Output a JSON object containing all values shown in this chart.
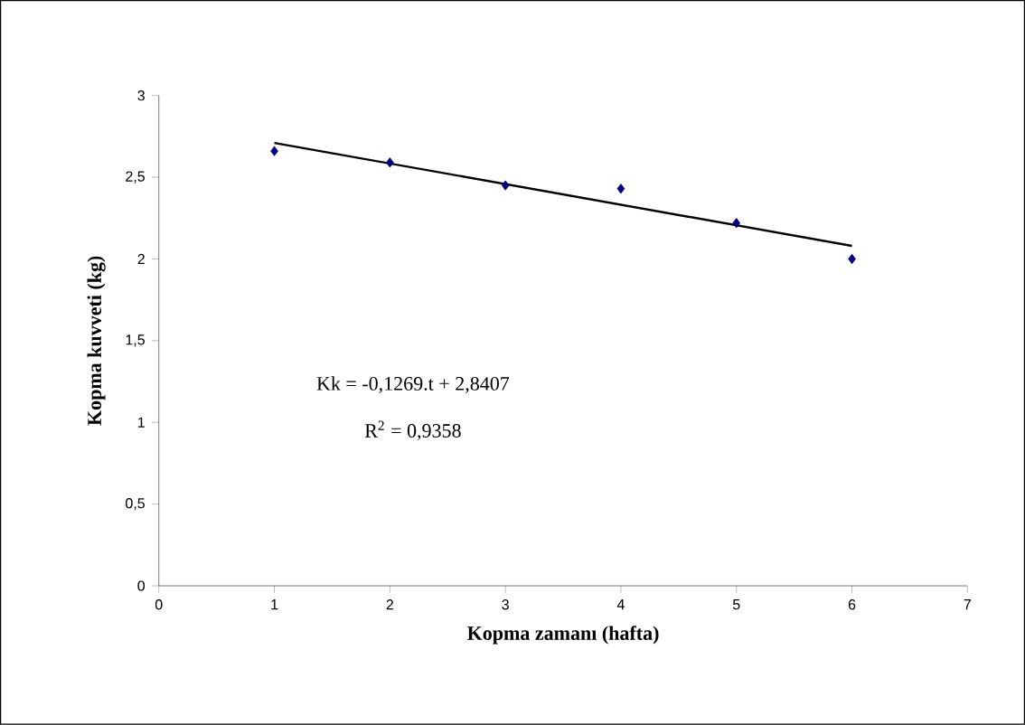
{
  "chart_data": {
    "type": "scatter",
    "xlabel": "Kopma zamanı (hafta)",
    "ylabel": "Kopma kuvveti (kg)",
    "xlim": [
      0,
      7
    ],
    "ylim": [
      0,
      3
    ],
    "xticks": [
      0,
      1,
      2,
      3,
      4,
      5,
      6,
      7
    ],
    "yticks": [
      {
        "value": 0,
        "label": "0"
      },
      {
        "value": 0.5,
        "label": "0,5"
      },
      {
        "value": 1,
        "label": "1"
      },
      {
        "value": 1.5,
        "label": "1,5"
      },
      {
        "value": 2,
        "label": "2"
      },
      {
        "value": 2.5,
        "label": "2,5"
      },
      {
        "value": 3,
        "label": "3"
      }
    ],
    "grid": false,
    "series": [
      {
        "color": "#000080",
        "marker": "diamond",
        "x": [
          1,
          2,
          3,
          4,
          5,
          6
        ],
        "values": [
          2.66,
          2.59,
          2.45,
          2.43,
          2.22,
          2.0
        ]
      },
      {
        "type": "line",
        "color": "#000000",
        "marker": "none",
        "line_style": "solid",
        "x": [
          1,
          6
        ],
        "values": [
          2.71,
          2.08
        ]
      }
    ],
    "annotations": [
      "Kk = -0,1269.t + 2,8407",
      "R$^{2}$ = 0,9358"
    ]
  }
}
